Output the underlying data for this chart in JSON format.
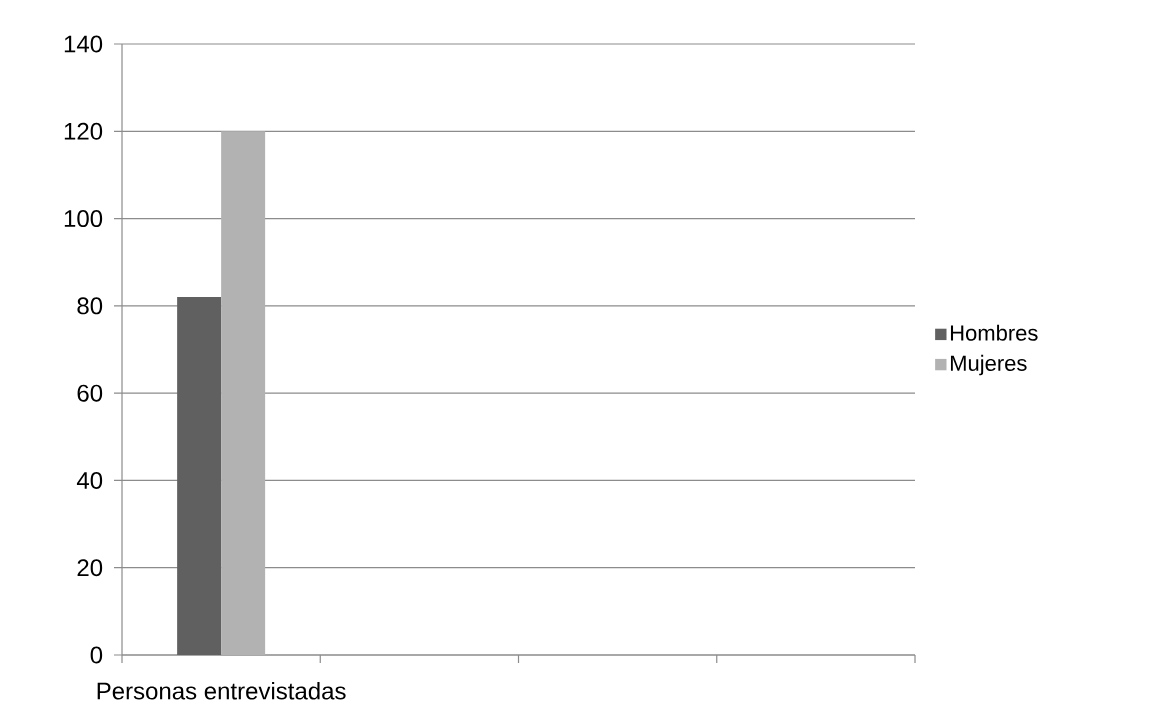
{
  "chart_data": {
    "type": "bar",
    "categories": [
      "Personas entrevistadas",
      null,
      null,
      null
    ],
    "series": [
      {
        "name": "Hombres",
        "color": "#606060",
        "values": [
          82,
          null,
          null,
          null
        ]
      },
      {
        "name": "Mujeres",
        "color": "#b2b2b2",
        "values": [
          120,
          null,
          null,
          null
        ]
      }
    ],
    "ylim": [
      0,
      140
    ],
    "yticks": [
      0,
      20,
      40,
      60,
      80,
      100,
      120,
      140
    ],
    "grid": "y",
    "legend": "right"
  }
}
